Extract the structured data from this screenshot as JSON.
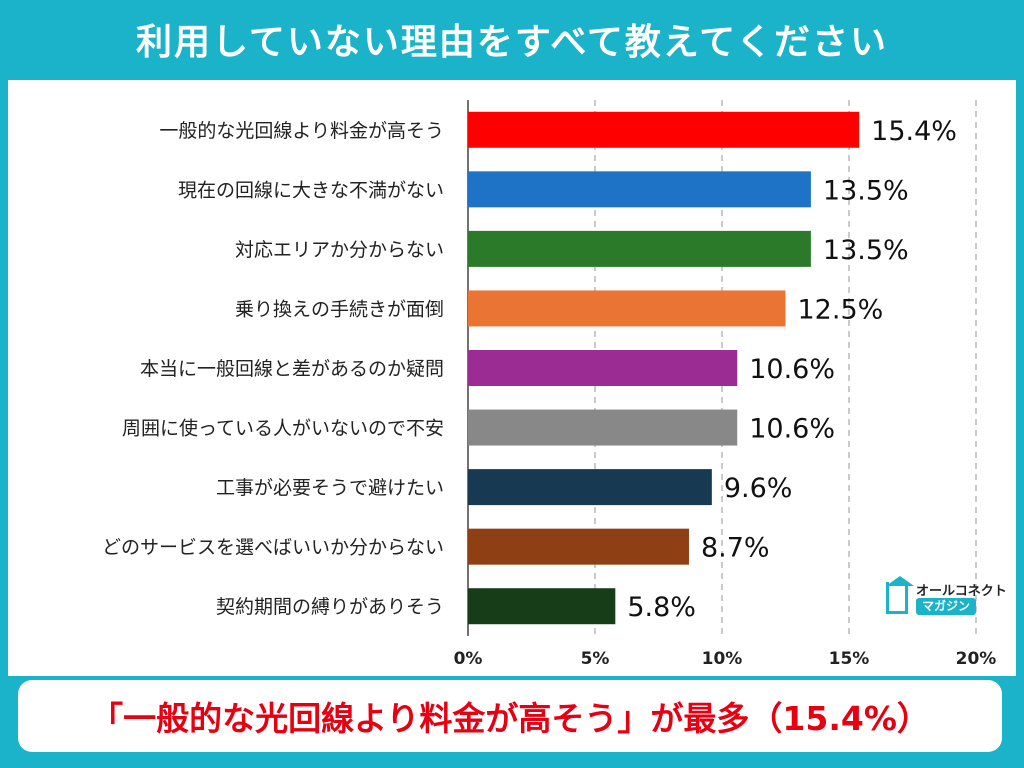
{
  "title": "利用していない理由をすべて教えてください",
  "footer": "「一般的な光回線より料金が高そう」が最多（15.4%）",
  "logo": {
    "line1": "オールコネクト",
    "line2": "マガジン"
  },
  "chart_data": {
    "type": "bar",
    "orientation": "horizontal",
    "categories": [
      "一般的な光回線より料金が高そう",
      "現在の回線に大きな不満がない",
      "対応エリアか分からない",
      "乗り換えの手続きが面倒",
      "本当に一般回線と差があるのか疑問",
      "周囲に使っている人がいないので不安",
      "工事が必要そうで避けたい",
      "どのサービスを選べばいいか分からない",
      "契約期間の縛りがありそう"
    ],
    "values": [
      15.4,
      13.5,
      13.5,
      12.5,
      10.6,
      10.6,
      9.6,
      8.7,
      5.8
    ],
    "value_labels": [
      "15.4%",
      "13.5%",
      "13.5%",
      "12.5%",
      "10.6%",
      "10.6%",
      "9.6%",
      "8.7%",
      "5.8%"
    ],
    "colors": [
      "#ff0000",
      "#1f73c6",
      "#2a7a2a",
      "#ea7533",
      "#9b2c94",
      "#888888",
      "#173a52",
      "#8e3f14",
      "#163d17"
    ],
    "xlim": [
      0,
      20
    ],
    "xticks": [
      0,
      5,
      10,
      15,
      20
    ],
    "xtick_labels": [
      "0%",
      "5%",
      "10%",
      "15%",
      "20%"
    ],
    "grid": "dashed-vertical"
  }
}
